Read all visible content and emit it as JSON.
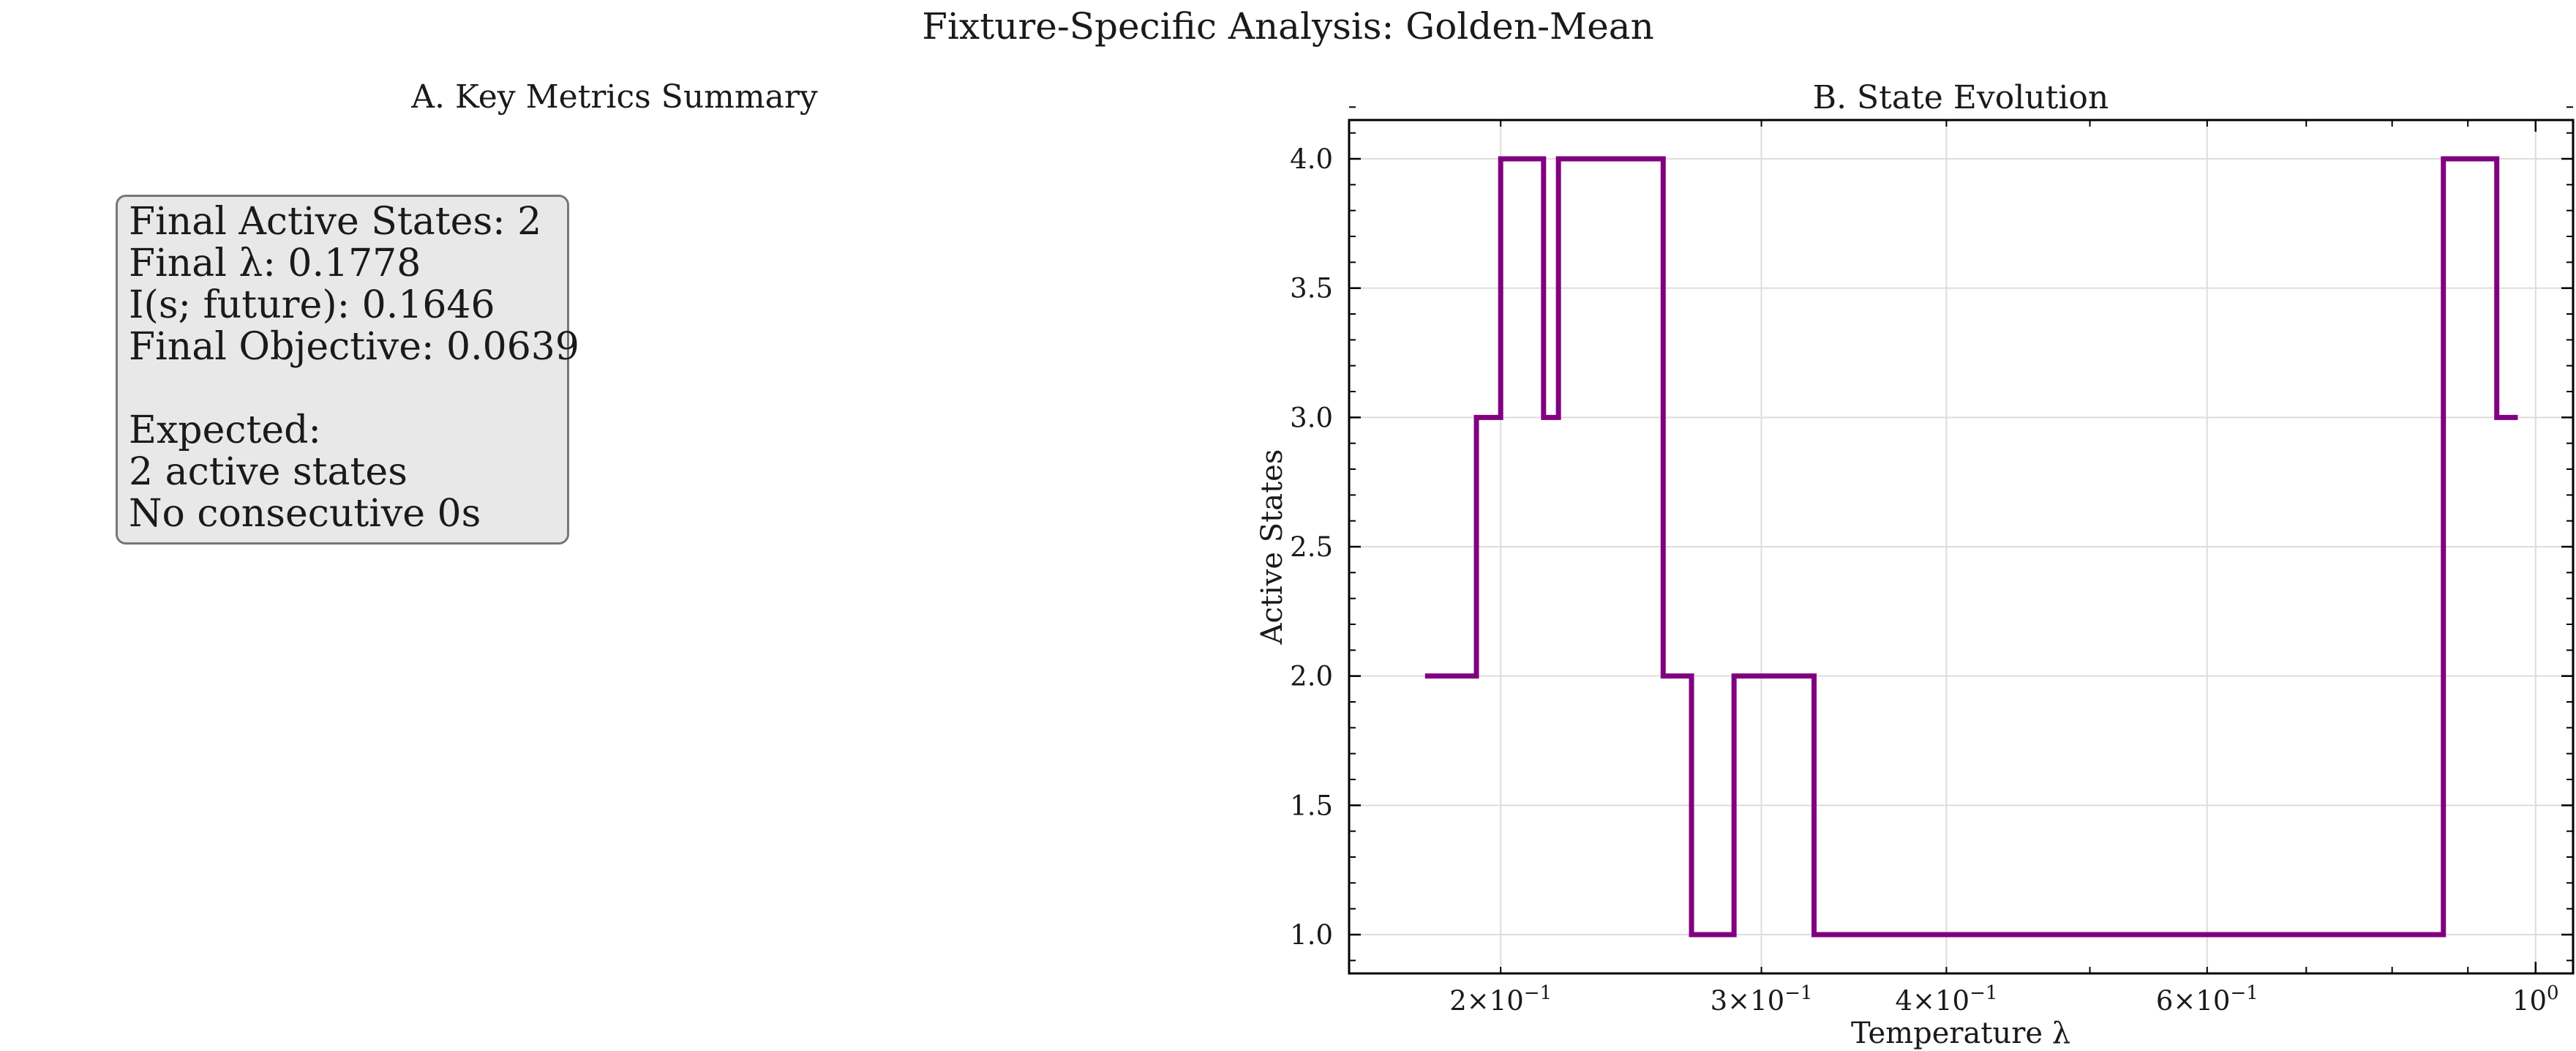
{
  "figure": {
    "title": "Fixture-Specific Analysis: Golden-Mean"
  },
  "panel_a": {
    "title": "A. Key Metrics Summary",
    "lines": [
      "Final Active States: 2",
      "Final λ: 0.1778",
      "I(s; future): 0.1646",
      "Final Objective: 0.0639",
      "",
      "Expected:",
      "2 active states",
      "No consecutive 0s"
    ]
  },
  "chart_data": {
    "type": "line",
    "drawstyle": "steps-post",
    "title": "B. State Evolution",
    "xlabel": "Temperature λ",
    "ylabel": "Active States",
    "xscale": "log",
    "xlim": [
      0.158,
      1.06
    ],
    "ylim": [
      0.85,
      4.15
    ],
    "xticks": [
      {
        "value": 0.2,
        "mantissa": "2",
        "exp": "−1"
      },
      {
        "value": 0.3,
        "mantissa": "3",
        "exp": "−1"
      },
      {
        "value": 0.4,
        "mantissa": "4",
        "exp": "−1"
      },
      {
        "value": 0.6,
        "mantissa": "6",
        "exp": "−1"
      },
      {
        "value": 1.0,
        "mantissa": "",
        "exp": "0"
      }
    ],
    "yticks": [
      1.0,
      1.5,
      2.0,
      2.5,
      3.0,
      3.5,
      4.0
    ],
    "grid": true,
    "color": "#800080",
    "x": [
      0.1778,
      0.1926,
      0.2,
      0.2138,
      0.2188,
      0.2575,
      0.2691,
      0.2875,
      0.3256,
      0.8664,
      0.9414,
      0.9727
    ],
    "y": [
      2,
      3,
      4,
      3,
      4,
      2,
      1,
      2,
      1,
      4,
      3,
      3
    ]
  }
}
